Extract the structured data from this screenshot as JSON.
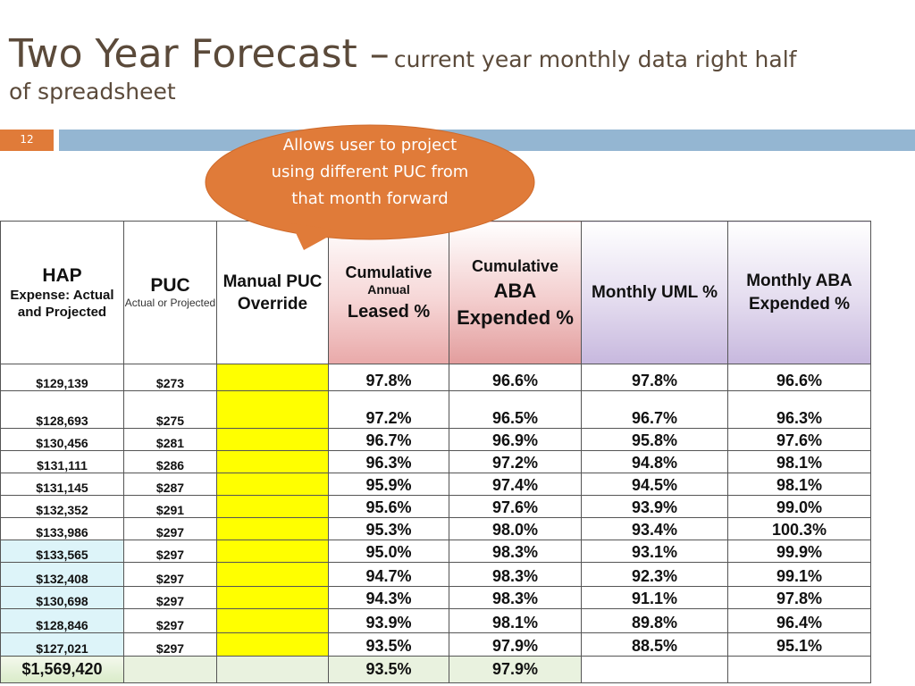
{
  "slide": {
    "title_main": "Two Year Forecast –",
    "title_sub": "current year monthly data right  half",
    "title_sub2": "of spreadsheet",
    "number": "12",
    "callout_text": "Allows user to project using different PUC from that month forward",
    "colors": {
      "title": "#5b4a3a",
      "accent": "#e07b39",
      "bar": "#94b6d2",
      "highlight": "#ffff00"
    }
  },
  "table": {
    "headers": {
      "hap_l1": "HAP",
      "hap_l2": "Expense: Actual and Projected",
      "puc_l1": "PUC",
      "puc_l2": "Actual or Projected",
      "manual": "Manual PUC Override",
      "cum_leased_l1": "Cumulative",
      "cum_leased_l2": "Annual",
      "cum_leased_l3": "Leased %",
      "cum_aba_l1": "Cumulative",
      "cum_aba_l2": "ABA Expended %",
      "uml": "Monthly UML %",
      "aba_monthly": "Monthly  ABA Expended %"
    },
    "rows": [
      {
        "hap": "$129,139",
        "puc": "$273",
        "cum_leased": "97.8%",
        "cum_aba": "96.6%",
        "uml": "97.8%",
        "aba": "96.6%"
      },
      {
        "hap": "$128,693",
        "puc": "$275",
        "cum_leased": "97.2%",
        "cum_aba": "96.5%",
        "uml": "96.7%",
        "aba": "96.3%"
      },
      {
        "hap": "$130,456",
        "puc": "$281",
        "cum_leased": "96.7%",
        "cum_aba": "96.9%",
        "uml": "95.8%",
        "aba": "97.6%"
      },
      {
        "hap": "$131,111",
        "puc": "$286",
        "cum_leased": "96.3%",
        "cum_aba": "97.2%",
        "uml": "94.8%",
        "aba": "98.1%"
      },
      {
        "hap": "$131,145",
        "puc": "$287",
        "cum_leased": "95.9%",
        "cum_aba": "97.4%",
        "uml": "94.5%",
        "aba": "98.1%"
      },
      {
        "hap": "$132,352",
        "puc": "$291",
        "cum_leased": "95.6%",
        "cum_aba": "97.6%",
        "uml": "93.9%",
        "aba": "99.0%"
      },
      {
        "hap": "$133,986",
        "puc": "$297",
        "cum_leased": "95.3%",
        "cum_aba": "98.0%",
        "uml": "93.4%",
        "aba": "100.3%"
      },
      {
        "hap": "$133,565",
        "puc": "$297",
        "cum_leased": "95.0%",
        "cum_aba": "98.3%",
        "uml": "93.1%",
        "aba": "99.9%"
      },
      {
        "hap": "$132,408",
        "puc": "$297",
        "cum_leased": "94.7%",
        "cum_aba": "98.3%",
        "uml": "92.3%",
        "aba": "99.1%"
      },
      {
        "hap": "$130,698",
        "puc": "$297",
        "cum_leased": "94.3%",
        "cum_aba": "98.3%",
        "uml": "91.1%",
        "aba": "97.8%"
      },
      {
        "hap": "$128,846",
        "puc": "$297",
        "cum_leased": "93.9%",
        "cum_aba": "98.1%",
        "uml": "89.8%",
        "aba": "96.4%"
      },
      {
        "hap": "$127,021",
        "puc": "$297",
        "cum_leased": "93.5%",
        "cum_aba": "97.9%",
        "uml": "88.5%",
        "aba": "95.1%"
      }
    ],
    "total": {
      "hap": "$1,569,420",
      "cum_leased": "93.5%",
      "cum_aba": "97.9%"
    }
  }
}
